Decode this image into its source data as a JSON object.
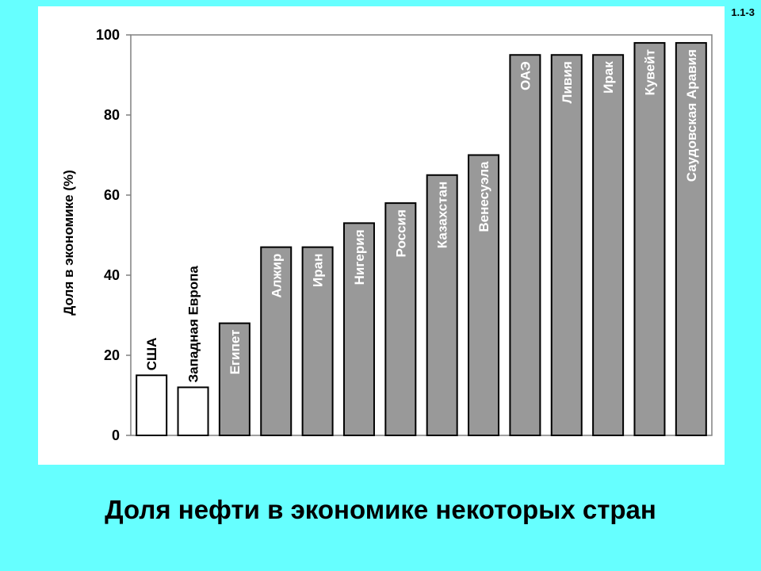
{
  "slide": {
    "number": "1.1-3",
    "title": "Доля нефти в экономике некоторых стран"
  },
  "chart_data": {
    "type": "bar",
    "title": "",
    "xlabel": "",
    "ylabel": "Доля в экономике (%)",
    "ylim": [
      0,
      100
    ],
    "yticks": [
      0,
      20,
      40,
      60,
      80,
      100
    ],
    "grid": false,
    "categories": [
      "США",
      "Западная Европа",
      "Египет",
      "Алжир",
      "Иран",
      "Нигерия",
      "Россия",
      "Казахстан",
      "Венесуэла",
      "ОАЭ",
      "Ливия",
      "Ирак",
      "Кувейт",
      "Саудовская Аравия"
    ],
    "values": [
      15,
      12,
      28,
      47,
      47,
      53,
      58,
      65,
      70,
      95,
      95,
      95,
      98,
      98
    ],
    "bar_colors": [
      "#FFFFFF",
      "#FFFFFF",
      "#999999",
      "#999999",
      "#999999",
      "#999999",
      "#999999",
      "#999999",
      "#999999",
      "#999999",
      "#999999",
      "#999999",
      "#999999",
      "#999999"
    ],
    "label_colors": [
      "#000000",
      "#000000",
      "#FFFFFF",
      "#FFFFFF",
      "#FFFFFF",
      "#FFFFFF",
      "#FFFFFF",
      "#FFFFFF",
      "#FFFFFF",
      "#FFFFFF",
      "#FFFFFF",
      "#FFFFFF",
      "#FFFFFF",
      "#FFFFFF"
    ]
  }
}
